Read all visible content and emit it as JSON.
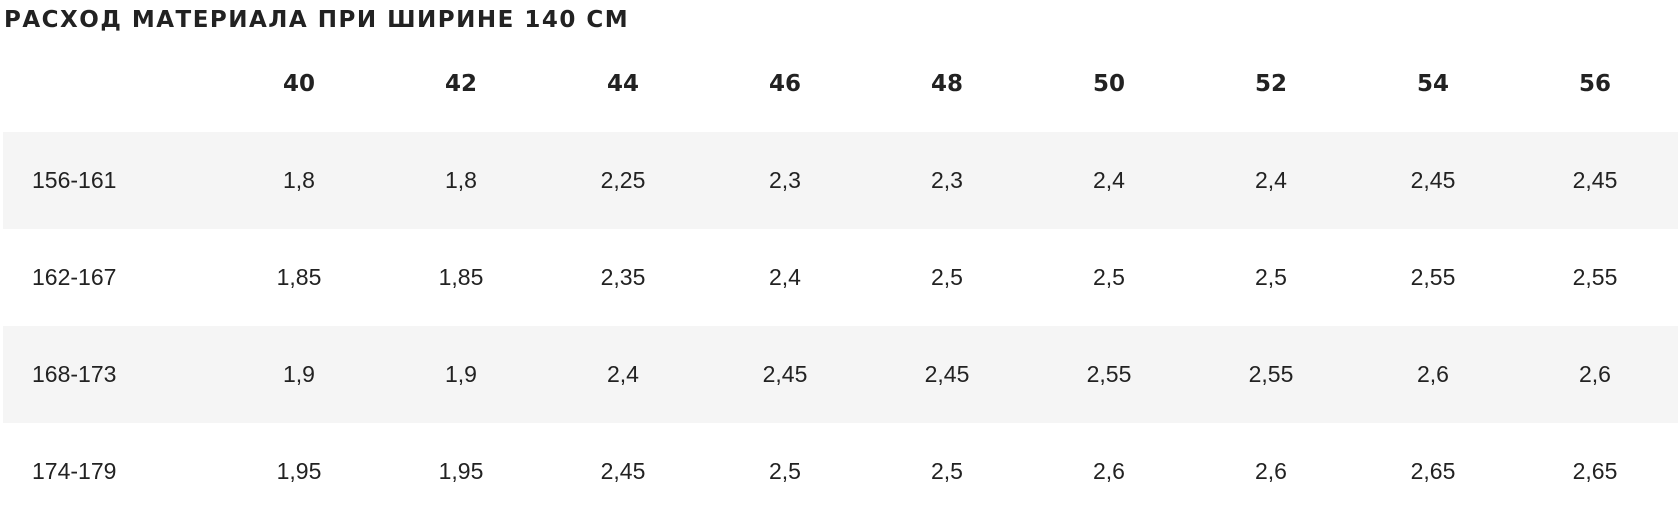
{
  "title": "РАСХОД МАТЕРИАЛА ПРИ ШИРИНЕ 140 СМ",
  "table": {
    "columns": [
      "40",
      "42",
      "44",
      "46",
      "48",
      "50",
      "52",
      "54",
      "56"
    ],
    "rows": [
      {
        "label": "156-161",
        "values": [
          "1,8",
          "1,8",
          "2,25",
          "2,3",
          "2,3",
          "2,4",
          "2,4",
          "2,45",
          "2,45"
        ]
      },
      {
        "label": "162-167",
        "values": [
          "1,85",
          "1,85",
          "2,35",
          "2,4",
          "2,5",
          "2,5",
          "2,5",
          "2,55",
          "2,55"
        ]
      },
      {
        "label": "168-173",
        "values": [
          "1,9",
          "1,9",
          "2,4",
          "2,45",
          "2,45",
          "2,55",
          "2,55",
          "2,6",
          "2,6"
        ]
      },
      {
        "label": "174-179",
        "values": [
          "1,95",
          "1,95",
          "2,45",
          "2,5",
          "2,5",
          "2,6",
          "2,6",
          "2,65",
          "2,65"
        ]
      }
    ]
  }
}
